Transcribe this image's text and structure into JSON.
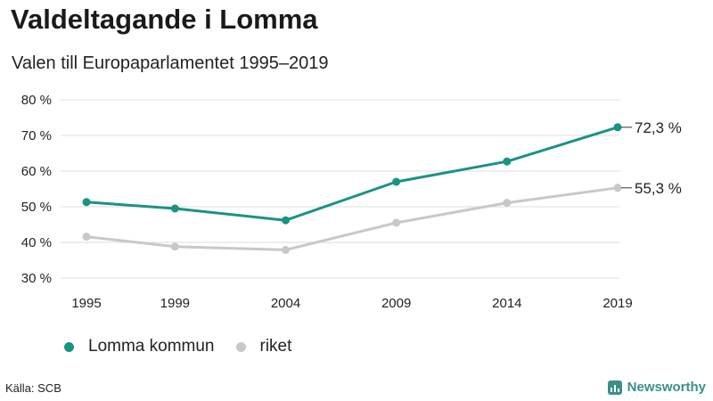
{
  "header": {
    "title": "Valdeltagande i Lomma",
    "subtitle": "Valen till Europaparlamentet 1995–2019"
  },
  "footer": {
    "source": "Källa: SCB",
    "brand": "Newsworthy"
  },
  "colors": {
    "lomma": "#1a9383",
    "riket": "#c8c8c8",
    "grid": "#dddddd",
    "brand": "#3b8f8b"
  },
  "legend": [
    {
      "label": "Lomma kommun",
      "color": "#1a9383"
    },
    {
      "label": "riket",
      "color": "#c8c8c8"
    }
  ],
  "chart_data": {
    "type": "line",
    "title": "Valdeltagande i Lomma",
    "subtitle": "Valen till Europaparlamentet 1995–2019",
    "categories": [
      "1995",
      "1999",
      "2004",
      "2009",
      "2014",
      "2019"
    ],
    "x": [
      1995,
      1999,
      2004,
      2009,
      2014,
      2019
    ],
    "series": [
      {
        "name": "Lomma kommun",
        "color": "#1a9383",
        "values": [
          51.3,
          49.5,
          46.2,
          57.0,
          62.7,
          72.3
        ]
      },
      {
        "name": "riket",
        "color": "#c8c8c8",
        "values": [
          41.6,
          38.8,
          37.9,
          45.5,
          51.1,
          55.3
        ]
      }
    ],
    "end_labels": [
      "72,3 %",
      "55,3 %"
    ],
    "yticks": [
      30,
      40,
      50,
      60,
      70,
      80
    ],
    "ytick_labels": [
      "30 %",
      "40 %",
      "50 %",
      "60 %",
      "70 %",
      "80 %"
    ],
    "ylim": [
      30,
      80
    ],
    "xlabel": "",
    "ylabel": "",
    "grid": true,
    "legend_position": "bottom-left"
  }
}
